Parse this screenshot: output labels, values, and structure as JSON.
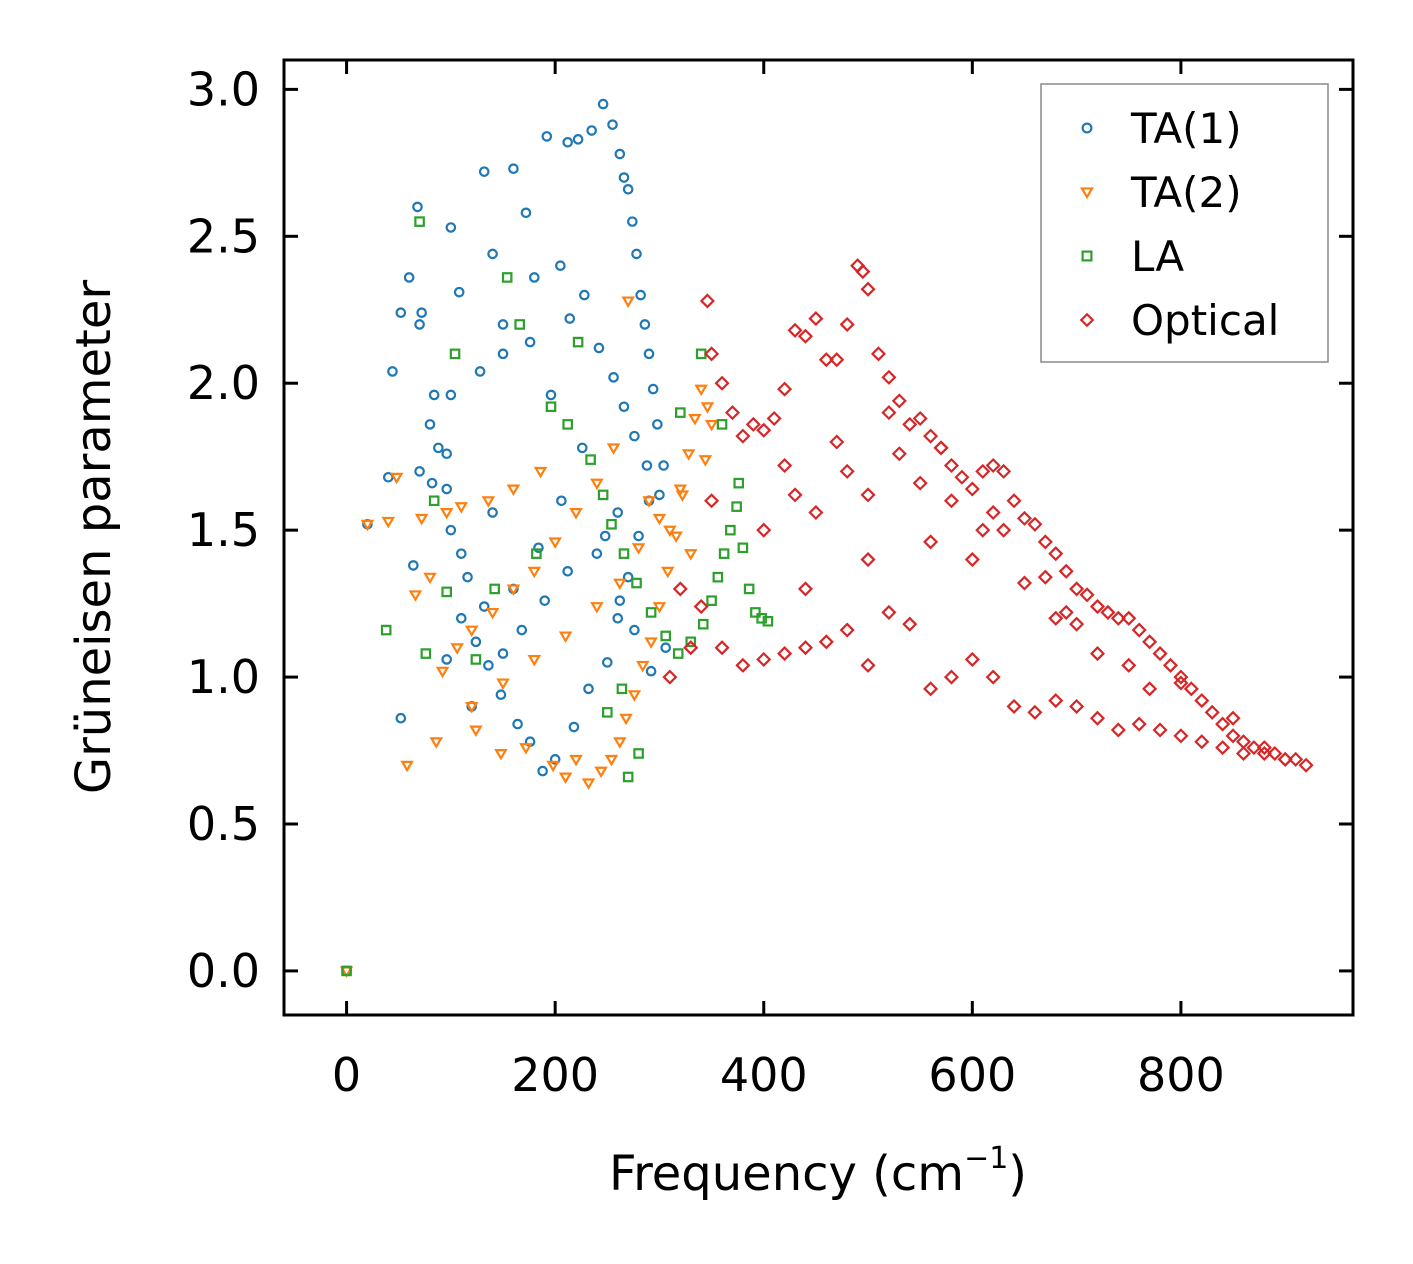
{
  "chart_data": {
    "type": "scatter",
    "title": "",
    "xlabel": "Frequency (cm",
    "xlabel_sup": "−1",
    "xlabel_close": ")",
    "ylabel": "Grüneisen parameter",
    "xlim": [
      -60,
      965
    ],
    "ylim": [
      -0.15,
      3.1
    ],
    "xticks": [
      0,
      200,
      400,
      600,
      800
    ],
    "xtick_labels": [
      "0",
      "200",
      "400",
      "600",
      "800"
    ],
    "yticks": [
      0.0,
      0.5,
      1.0,
      1.5,
      2.0,
      2.5,
      3.0
    ],
    "ytick_labels": [
      "0.0",
      "0.5",
      "1.0",
      "1.5",
      "2.0",
      "2.5",
      "3.0"
    ],
    "grid": false,
    "legend_position": "top-right",
    "series": [
      {
        "name": "TA(1)",
        "label": "TA(1)",
        "color": "#1f77b4",
        "marker": "circle",
        "x": [
          0,
          20,
          40,
          52,
          64,
          68,
          72,
          82,
          88,
          96,
          100,
          108,
          120,
          132,
          140,
          150,
          160,
          172,
          180,
          192,
          205,
          212,
          222,
          235,
          246,
          255,
          262,
          266,
          270,
          274,
          278,
          282,
          286,
          290,
          294,
          298,
          304,
          290,
          280,
          270,
          260,
          250,
          232,
          218,
          200,
          188,
          176,
          164,
          148,
          136,
          124,
          110,
          96,
          84,
          60,
          44,
          52,
          70,
          100,
          128,
          150,
          176,
          196,
          214,
          228,
          242,
          256,
          266,
          276,
          288,
          300,
          260,
          240,
          212,
          190,
          168,
          150,
          132,
          110,
          96,
          80,
          70,
          100,
          116,
          140,
          160,
          184,
          206,
          226,
          248,
          262,
          276,
          292,
          306
        ],
        "y": [
          0.0,
          1.52,
          1.68,
          0.86,
          1.38,
          2.6,
          2.24,
          1.66,
          1.78,
          1.06,
          2.53,
          2.31,
          0.9,
          2.72,
          2.44,
          2.2,
          2.73,
          2.58,
          2.36,
          2.84,
          2.4,
          2.82,
          2.83,
          2.86,
          2.95,
          2.88,
          2.78,
          2.7,
          2.66,
          2.55,
          2.44,
          2.3,
          2.2,
          2.1,
          1.98,
          1.86,
          1.72,
          1.6,
          1.48,
          1.34,
          1.2,
          1.05,
          0.96,
          0.83,
          0.72,
          0.68,
          0.78,
          0.84,
          0.94,
          1.04,
          1.12,
          1.2,
          1.76,
          1.96,
          2.36,
          2.04,
          2.24,
          2.2,
          1.96,
          2.04,
          2.1,
          2.14,
          1.96,
          2.22,
          2.3,
          2.12,
          2.02,
          1.92,
          1.82,
          1.72,
          1.62,
          1.56,
          1.42,
          1.36,
          1.26,
          1.16,
          1.08,
          1.24,
          1.42,
          1.64,
          1.86,
          1.7,
          1.5,
          1.34,
          1.56,
          1.3,
          1.44,
          1.6,
          1.78,
          1.48,
          1.26,
          1.16,
          1.02,
          1.1
        ]
      },
      {
        "name": "TA(2)",
        "label": "TA(2)",
        "color": "#ff7f0e",
        "marker": "triangle-down",
        "x": [
          0,
          20,
          40,
          48,
          58,
          72,
          86,
          96,
          110,
          124,
          136,
          148,
          160,
          172,
          186,
          198,
          210,
          220,
          232,
          244,
          254,
          262,
          268,
          276,
          284,
          292,
          300,
          308,
          316,
          322,
          328,
          334,
          340,
          346,
          350,
          66,
          80,
          92,
          106,
          120,
          140,
          160,
          180,
          200,
          220,
          240,
          256,
          270,
          290,
          310,
          330,
          120,
          150,
          180,
          210,
          240,
          262,
          280,
          300,
          320,
          344
        ],
        "y": [
          0.0,
          1.52,
          1.53,
          1.68,
          0.7,
          1.54,
          0.78,
          1.56,
          1.58,
          0.82,
          1.6,
          0.74,
          1.64,
          0.76,
          1.7,
          0.7,
          0.66,
          0.72,
          0.64,
          0.68,
          0.72,
          0.78,
          0.86,
          0.94,
          1.04,
          1.12,
          1.24,
          1.36,
          1.48,
          1.62,
          1.76,
          1.88,
          1.98,
          1.92,
          1.86,
          1.28,
          1.34,
          1.02,
          1.1,
          1.16,
          1.22,
          1.3,
          1.36,
          1.46,
          1.56,
          1.66,
          1.78,
          2.28,
          1.6,
          1.5,
          1.42,
          0.9,
          0.98,
          1.06,
          1.14,
          1.24,
          1.32,
          1.44,
          1.54,
          1.64,
          1.74
        ]
      },
      {
        "name": "LA",
        "label": "LA",
        "color": "#2ca02c",
        "marker": "square",
        "x": [
          0,
          38,
          70,
          76,
          84,
          96,
          104,
          124,
          142,
          154,
          166,
          182,
          196,
          212,
          222,
          234,
          246,
          254,
          266,
          278,
          292,
          306,
          318,
          330,
          342,
          350,
          356,
          362,
          368,
          374,
          380,
          386,
          392,
          398,
          404,
          280,
          270,
          320,
          340,
          360,
          376,
          264,
          250
        ],
        "y": [
          0.0,
          1.16,
          2.55,
          1.08,
          1.6,
          1.29,
          2.1,
          1.06,
          1.3,
          2.36,
          2.2,
          1.42,
          1.92,
          1.86,
          2.14,
          1.74,
          1.62,
          1.52,
          1.42,
          1.32,
          1.22,
          1.14,
          1.08,
          1.12,
          1.18,
          1.26,
          1.34,
          1.42,
          1.5,
          1.58,
          1.44,
          1.3,
          1.22,
          1.2,
          1.19,
          0.74,
          0.66,
          1.9,
          2.1,
          1.86,
          1.66,
          0.96,
          0.88
        ]
      },
      {
        "name": "Optical",
        "label": "Optical",
        "color": "#d62728",
        "marker": "diamond",
        "x": [
          310,
          330,
          346,
          350,
          360,
          370,
          380,
          390,
          400,
          410,
          420,
          430,
          440,
          450,
          460,
          470,
          480,
          490,
          495,
          500,
          510,
          520,
          530,
          540,
          550,
          560,
          570,
          580,
          590,
          600,
          610,
          620,
          630,
          640,
          650,
          660,
          670,
          680,
          690,
          700,
          710,
          720,
          730,
          740,
          750,
          760,
          770,
          780,
          790,
          800,
          810,
          820,
          830,
          840,
          850,
          860,
          870,
          880,
          890,
          900,
          910,
          920,
          320,
          340,
          360,
          380,
          400,
          420,
          440,
          460,
          480,
          500,
          520,
          540,
          560,
          580,
          600,
          620,
          640,
          660,
          680,
          700,
          720,
          740,
          760,
          780,
          800,
          820,
          840,
          860,
          880,
          900,
          350,
          400,
          450,
          500,
          550,
          600,
          650,
          700,
          750,
          800,
          850,
          420,
          470,
          520,
          570,
          620,
          670,
          720,
          770,
          440,
          500,
          560,
          610,
          690,
          430,
          480,
          530,
          580,
          630,
          680
        ],
        "y": [
          1.0,
          1.1,
          2.28,
          2.1,
          2.0,
          1.9,
          1.82,
          1.86,
          1.84,
          1.88,
          1.98,
          2.18,
          2.16,
          2.22,
          2.08,
          2.08,
          2.2,
          2.4,
          2.38,
          2.32,
          2.1,
          2.02,
          1.94,
          1.86,
          1.88,
          1.82,
          1.78,
          1.72,
          1.68,
          1.64,
          1.7,
          1.72,
          1.7,
          1.6,
          1.54,
          1.52,
          1.46,
          1.42,
          1.36,
          1.3,
          1.28,
          1.24,
          1.22,
          1.2,
          1.2,
          1.16,
          1.12,
          1.08,
          1.04,
          1.0,
          0.96,
          0.92,
          0.88,
          0.84,
          0.8,
          0.78,
          0.76,
          0.76,
          0.74,
          0.72,
          0.72,
          0.7,
          1.3,
          1.24,
          1.1,
          1.04,
          1.06,
          1.08,
          1.1,
          1.12,
          1.16,
          1.04,
          1.22,
          1.18,
          0.96,
          1.0,
          1.06,
          1.0,
          0.9,
          0.88,
          0.92,
          0.9,
          0.86,
          0.82,
          0.84,
          0.82,
          0.8,
          0.78,
          0.76,
          0.74,
          0.74,
          0.72,
          1.6,
          1.5,
          1.56,
          1.62,
          1.66,
          1.4,
          1.32,
          1.18,
          1.04,
          0.98,
          0.86,
          1.72,
          1.8,
          1.9,
          1.78,
          1.56,
          1.34,
          1.08,
          0.96,
          1.3,
          1.4,
          1.46,
          1.5,
          1.22,
          1.62,
          1.7,
          1.76,
          1.6,
          1.5,
          1.2
        ]
      }
    ]
  }
}
